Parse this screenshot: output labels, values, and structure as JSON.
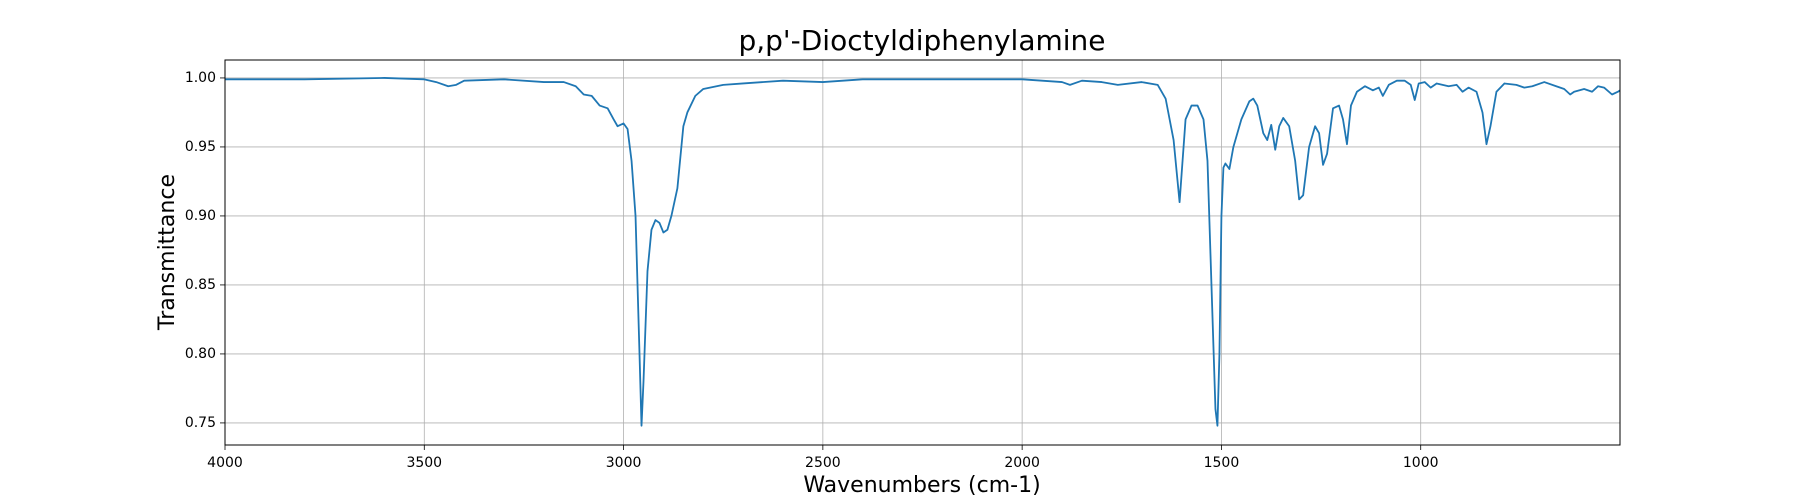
{
  "chart_data": {
    "type": "line",
    "title": "p,p'-Dioctyldiphenylamine",
    "xlabel": "Wavenumbers (cm-1)",
    "ylabel": "Transmittance",
    "x": [
      4000,
      3800,
      3600,
      3500,
      3470,
      3440,
      3420,
      3400,
      3300,
      3200,
      3150,
      3120,
      3100,
      3080,
      3060,
      3040,
      3025,
      3015,
      3000,
      2990,
      2980,
      2970,
      2960,
      2955,
      2950,
      2940,
      2930,
      2920,
      2910,
      2900,
      2890,
      2880,
      2865,
      2850,
      2840,
      2820,
      2800,
      2750,
      2700,
      2600,
      2500,
      2400,
      2200,
      2000,
      1900,
      1880,
      1850,
      1800,
      1760,
      1700,
      1660,
      1640,
      1620,
      1610,
      1605,
      1600,
      1590,
      1575,
      1560,
      1545,
      1535,
      1525,
      1515,
      1510,
      1505,
      1500,
      1495,
      1490,
      1480,
      1470,
      1450,
      1430,
      1420,
      1410,
      1395,
      1385,
      1375,
      1365,
      1355,
      1345,
      1330,
      1315,
      1305,
      1295,
      1280,
      1265,
      1255,
      1245,
      1235,
      1220,
      1205,
      1195,
      1185,
      1175,
      1160,
      1140,
      1120,
      1105,
      1095,
      1080,
      1060,
      1040,
      1025,
      1015,
      1005,
      990,
      975,
      960,
      930,
      910,
      895,
      880,
      860,
      845,
      835,
      825,
      810,
      790,
      760,
      740,
      720,
      690,
      660,
      640,
      625,
      615,
      590,
      570,
      555,
      540,
      520,
      505,
      500
    ],
    "series": [
      {
        "color": "#1f77b4",
        "values": [
          0.999,
          0.999,
          1.0,
          0.999,
          0.997,
          0.994,
          0.995,
          0.998,
          0.999,
          0.997,
          0.997,
          0.994,
          0.988,
          0.987,
          0.98,
          0.978,
          0.97,
          0.965,
          0.967,
          0.963,
          0.94,
          0.9,
          0.8,
          0.748,
          0.78,
          0.86,
          0.89,
          0.897,
          0.895,
          0.888,
          0.89,
          0.9,
          0.92,
          0.965,
          0.975,
          0.987,
          0.992,
          0.995,
          0.996,
          0.998,
          0.997,
          0.999,
          0.999,
          0.999,
          0.997,
          0.995,
          0.998,
          0.997,
          0.995,
          0.997,
          0.995,
          0.985,
          0.955,
          0.925,
          0.91,
          0.93,
          0.97,
          0.98,
          0.98,
          0.97,
          0.94,
          0.85,
          0.76,
          0.748,
          0.8,
          0.9,
          0.935,
          0.938,
          0.934,
          0.95,
          0.97,
          0.983,
          0.985,
          0.98,
          0.96,
          0.955,
          0.966,
          0.948,
          0.965,
          0.971,
          0.965,
          0.94,
          0.912,
          0.915,
          0.95,
          0.965,
          0.96,
          0.937,
          0.945,
          0.978,
          0.98,
          0.97,
          0.952,
          0.98,
          0.99,
          0.994,
          0.991,
          0.993,
          0.987,
          0.995,
          0.998,
          0.998,
          0.995,
          0.984,
          0.996,
          0.997,
          0.993,
          0.996,
          0.994,
          0.995,
          0.99,
          0.993,
          0.99,
          0.975,
          0.952,
          0.965,
          0.99,
          0.996,
          0.995,
          0.993,
          0.994,
          0.997,
          0.994,
          0.992,
          0.988,
          0.99,
          0.992,
          0.99,
          0.994,
          0.993,
          0.988,
          0.99,
          0.991
        ]
      }
    ],
    "xlim": [
      4000,
      500
    ],
    "xticks": [
      4000,
      3500,
      3000,
      2500,
      2000,
      1500,
      1000
    ],
    "ylim": [
      0.734,
      1.013
    ],
    "yticks": [
      {
        "value": 0.75,
        "label": "0.75"
      },
      {
        "value": 0.8,
        "label": "0.80"
      },
      {
        "value": 0.85,
        "label": "0.85"
      },
      {
        "value": 0.9,
        "label": "0.90"
      },
      {
        "value": 0.95,
        "label": "0.95"
      },
      {
        "value": 1.0,
        "label": "1.00"
      }
    ],
    "grid": true
  }
}
